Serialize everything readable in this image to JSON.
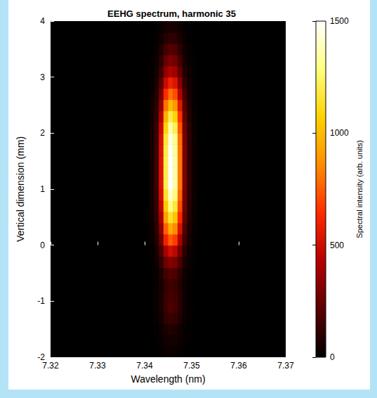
{
  "chart_data": {
    "type": "heatmap",
    "title": "EEHG spectrum, harmonic 35",
    "x_label": "Wavelength (nm)",
    "y_label": "Vertical dimension (mm)",
    "xlim": [
      7.32,
      7.37
    ],
    "xticks": [
      7.32,
      7.33,
      7.34,
      7.35,
      7.36,
      7.37
    ],
    "ylim": [
      -2,
      4
    ],
    "yticks": [
      -2,
      -1,
      0,
      1,
      2,
      3,
      4
    ],
    "x": [
      7.3415,
      7.3425,
      7.3435,
      7.3445,
      7.3455,
      7.3465,
      7.3475,
      7.3485,
      7.3495,
      7.3505
    ],
    "y": [
      -1.9,
      -1.7,
      -1.5,
      -1.3,
      -1.1,
      -0.9,
      -0.7,
      -0.5,
      -0.3,
      -0.1,
      0.1,
      0.3,
      0.5,
      0.7,
      0.9,
      1.1,
      1.3,
      1.5,
      1.7,
      1.9,
      2.1,
      2.3,
      2.5,
      2.7,
      2.9,
      3.1,
      3.3,
      3.5,
      3.7,
      3.9
    ],
    "z": [
      [
        1,
        3,
        11,
        24,
        30,
        27,
        17,
        6,
        2,
        1
      ],
      [
        2,
        5,
        18,
        40,
        50,
        45,
        28,
        10,
        4,
        1
      ],
      [
        2,
        8,
        28,
        64,
        80,
        72,
        44,
        16,
        6,
        2
      ],
      [
        4,
        14,
        49,
        112,
        140,
        126,
        77,
        28,
        10,
        3
      ],
      [
        5,
        18,
        63,
        144,
        180,
        162,
        99,
        36,
        13,
        4
      ],
      [
        5,
        17,
        60,
        136,
        170,
        153,
        94,
        34,
        12,
        3
      ],
      [
        5,
        15,
        53,
        120,
        150,
        135,
        83,
        30,
        11,
        3
      ],
      [
        6,
        20,
        70,
        160,
        200,
        180,
        110,
        40,
        14,
        4
      ],
      [
        10,
        32,
        112,
        256,
        320,
        288,
        176,
        64,
        22,
        6
      ],
      [
        15,
        50,
        175,
        400,
        500,
        450,
        275,
        100,
        35,
        10
      ],
      [
        23,
        75,
        263,
        600,
        750,
        675,
        413,
        150,
        53,
        15
      ],
      [
        29,
        95,
        333,
        760,
        950,
        855,
        523,
        190,
        67,
        19
      ],
      [
        35,
        115,
        403,
        920,
        1150,
        1035,
        633,
        230,
        81,
        23
      ],
      [
        39,
        130,
        455,
        1040,
        1300,
        1170,
        715,
        260,
        91,
        26
      ],
      [
        43,
        142,
        497,
        1136,
        1420,
        1278,
        781,
        284,
        99,
        28
      ],
      [
        45,
        150,
        525,
        1200,
        1500,
        1350,
        825,
        300,
        105,
        30
      ],
      [
        45,
        150,
        525,
        1200,
        1500,
        1350,
        825,
        300,
        105,
        30
      ],
      [
        45,
        150,
        525,
        1200,
        1500,
        1350,
        825,
        300,
        105,
        30
      ],
      [
        44,
        148,
        518,
        1184,
        1480,
        1332,
        814,
        296,
        104,
        30
      ],
      [
        44,
        145,
        508,
        1160,
        1450,
        1305,
        798,
        290,
        102,
        29
      ],
      [
        41,
        135,
        473,
        1080,
        1350,
        1215,
        743,
        270,
        95,
        27
      ],
      [
        36,
        120,
        420,
        960,
        1200,
        1080,
        660,
        240,
        84,
        24
      ],
      [
        30,
        100,
        350,
        800,
        1000,
        900,
        550,
        200,
        70,
        20
      ],
      [
        24,
        80,
        280,
        640,
        800,
        720,
        440,
        160,
        56,
        16
      ],
      [
        18,
        60,
        210,
        480,
        600,
        540,
        330,
        120,
        42,
        12
      ],
      [
        13,
        42,
        147,
        336,
        420,
        378,
        231,
        84,
        29,
        8
      ],
      [
        9,
        30,
        105,
        240,
        300,
        270,
        165,
        60,
        21,
        6
      ],
      [
        6,
        20,
        70,
        160,
        200,
        180,
        110,
        40,
        14,
        4
      ],
      [
        3,
        11,
        39,
        88,
        110,
        99,
        61,
        22,
        8,
        2
      ],
      [
        2,
        6,
        21,
        48,
        60,
        54,
        33,
        12,
        4,
        1
      ]
    ],
    "colorbar_label": "Spectral intensity (arb. units)",
    "colorbar_range": [
      0,
      1500
    ],
    "colorbar_ticks": [
      0,
      500,
      1000,
      1500
    ]
  }
}
